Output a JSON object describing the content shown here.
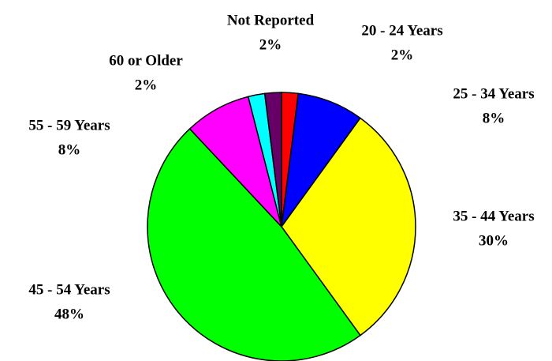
{
  "chart_data": {
    "type": "pie",
    "categories": [
      "20 - 24 Years",
      "25 - 34 Years",
      "35 - 44 Years",
      "45 - 54 Years",
      "55 - 59 Years",
      "60 or Older",
      "Not Reported"
    ],
    "values": [
      2,
      8,
      30,
      48,
      8,
      2,
      2
    ],
    "value_labels": [
      "2%",
      "8%",
      "30%",
      "48%",
      "8%",
      "2%",
      "2%"
    ],
    "colors": [
      "#ff0000",
      "#0000ff",
      "#ffff00",
      "#00ff00",
      "#ff00ff",
      "#00ffff",
      "#660066"
    ]
  }
}
